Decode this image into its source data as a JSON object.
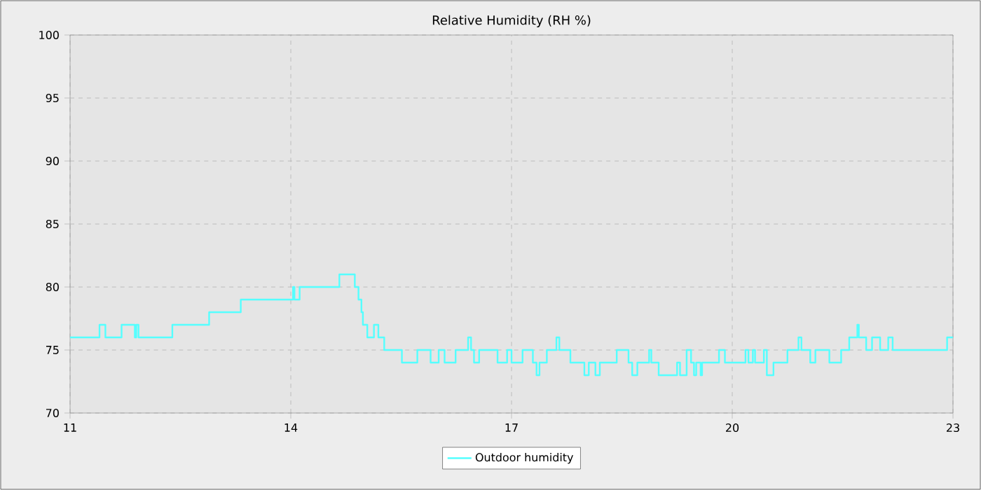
{
  "chart_data": {
    "type": "step",
    "title": "Relative Humidity (RH %)",
    "xlim": [
      11,
      23
    ],
    "xticks": [
      11,
      14,
      17,
      20,
      23
    ],
    "ylim": [
      70,
      100
    ],
    "yticks": [
      70,
      75,
      80,
      85,
      90,
      95,
      100
    ],
    "grid": true,
    "legend": "bottom",
    "marker": "none",
    "line_style": "solid",
    "series": [
      {
        "name": "Outdoor humidity",
        "color": "#55ffff",
        "x": [
          11.0,
          11.4,
          11.48,
          11.7,
          11.88,
          11.9,
          11.93,
          12.39,
          12.89,
          13.32,
          14.03,
          14.05,
          14.12,
          14.66,
          14.87,
          14.92,
          14.96,
          14.98,
          15.04,
          15.13,
          15.19,
          15.27,
          15.51,
          15.72,
          15.9,
          16.01,
          16.09,
          16.24,
          16.41,
          16.45,
          16.49,
          16.56,
          16.81,
          16.94,
          17.0,
          17.15,
          17.29,
          17.34,
          17.38,
          17.48,
          17.61,
          17.65,
          17.8,
          17.99,
          18.05,
          18.14,
          18.2,
          18.43,
          18.59,
          18.64,
          18.71,
          18.87,
          18.9,
          19.0,
          19.25,
          19.29,
          19.38,
          19.44,
          19.48,
          19.51,
          19.57,
          19.59,
          19.82,
          19.9,
          20.18,
          20.22,
          20.28,
          20.31,
          20.43,
          20.47,
          20.56,
          20.75,
          20.9,
          20.94,
          21.06,
          21.13,
          21.32,
          21.48,
          21.59,
          21.7,
          21.72,
          21.82,
          21.9,
          22.01,
          22.12,
          22.18,
          22.92,
          23.0
        ],
        "values": [
          76,
          77,
          76,
          77,
          76,
          77,
          76,
          77,
          78,
          79,
          80,
          79,
          80,
          81,
          80,
          79,
          78,
          77,
          76,
          77,
          76,
          75,
          74,
          75,
          74,
          75,
          74,
          75,
          76,
          75,
          74,
          75,
          74,
          75,
          74,
          75,
          74,
          73,
          74,
          75,
          76,
          75,
          74,
          73,
          74,
          73,
          74,
          75,
          74,
          73,
          74,
          75,
          74,
          73,
          74,
          73,
          75,
          74,
          73,
          74,
          73,
          74,
          75,
          74,
          75,
          74,
          75,
          74,
          75,
          73,
          74,
          75,
          76,
          75,
          74,
          75,
          74,
          75,
          76,
          77,
          76,
          75,
          76,
          75,
          76,
          75,
          76,
          76
        ]
      }
    ]
  }
}
